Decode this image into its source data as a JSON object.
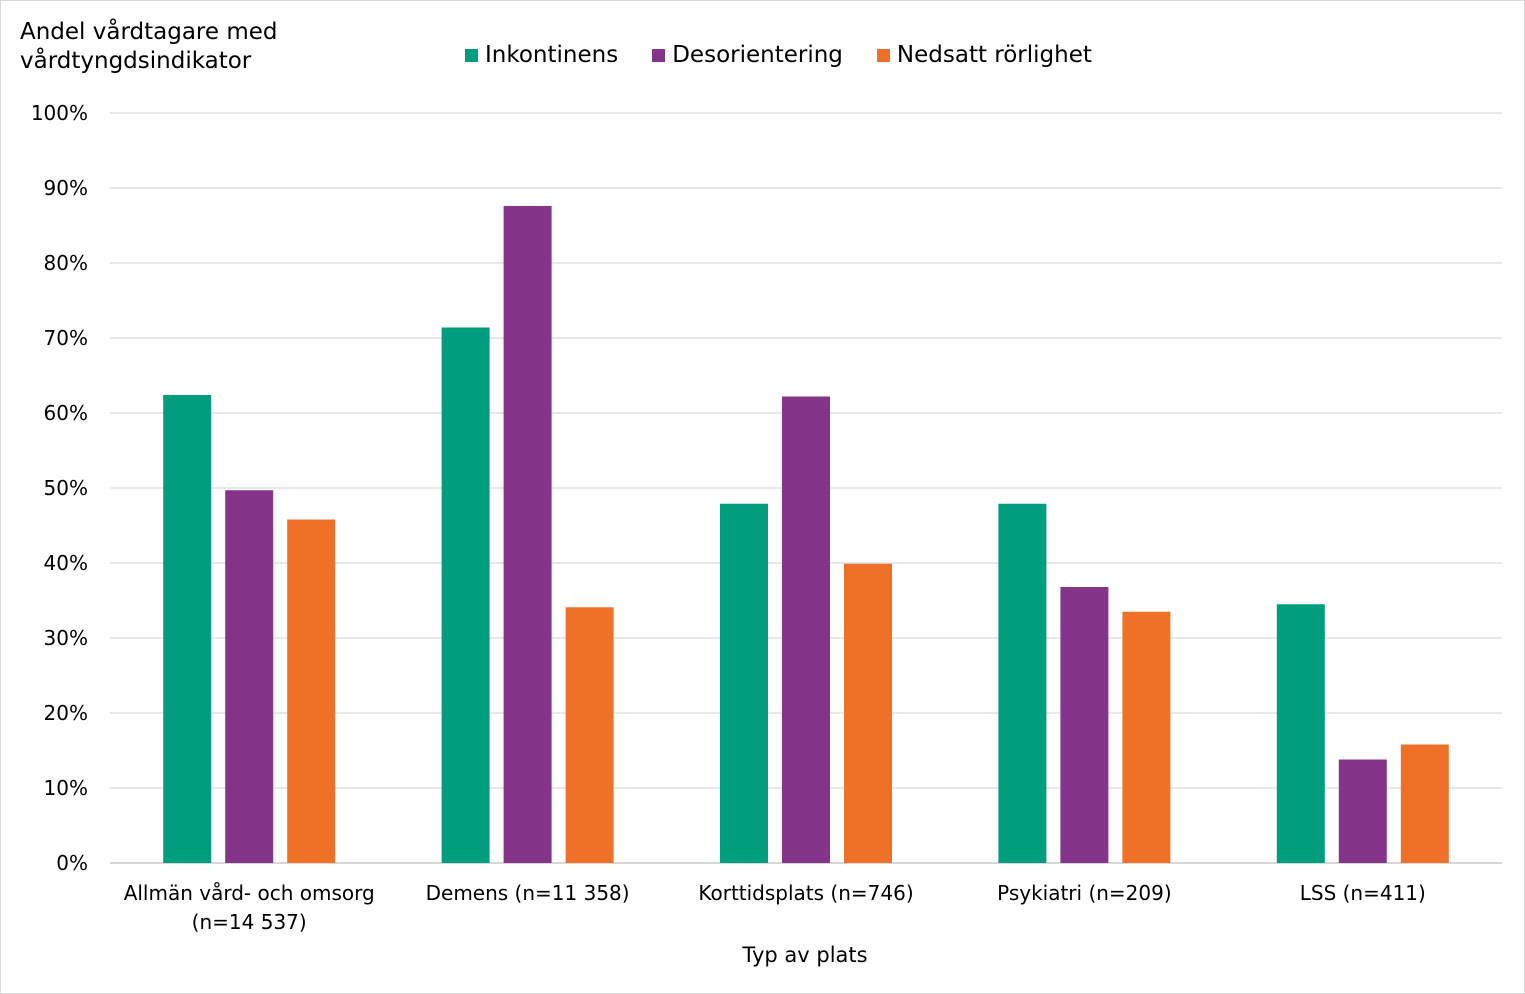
{
  "chart_data": {
    "type": "bar",
    "title": "",
    "ylabel": "Andel vårdtagare med vårdtyngdsindikator",
    "ylabel_lines": [
      "Andel vårdtagare med",
      "vårdtyngdsindikator"
    ],
    "xlabel": "Typ av plats",
    "ylim": [
      0,
      100
    ],
    "yticks": [
      "0%",
      "10%",
      "20%",
      "30%",
      "40%",
      "50%",
      "60%",
      "70%",
      "80%",
      "90%",
      "100%"
    ],
    "legend_position": "top",
    "grid": true,
    "categories": [
      [
        "Allmän vård- och omsorg",
        "(n=14 537)"
      ],
      [
        "Demens (n=11 358)"
      ],
      [
        "Korttidsplats (n=746)"
      ],
      [
        "Psykiatri (n=209)"
      ],
      [
        "LSS (n=411)"
      ]
    ],
    "series": [
      {
        "name": "Inkontinens",
        "color": "#009e7e",
        "values": [
          62.4,
          71.4,
          47.9,
          47.9,
          34.5
        ]
      },
      {
        "name": "Desorientering",
        "color": "#84358a",
        "values": [
          49.7,
          87.6,
          62.2,
          36.8,
          13.8
        ]
      },
      {
        "name": "Nedsatt rörlighet",
        "color": "#ee7127",
        "values": [
          45.8,
          34.1,
          39.9,
          33.5,
          15.8
        ]
      }
    ]
  }
}
